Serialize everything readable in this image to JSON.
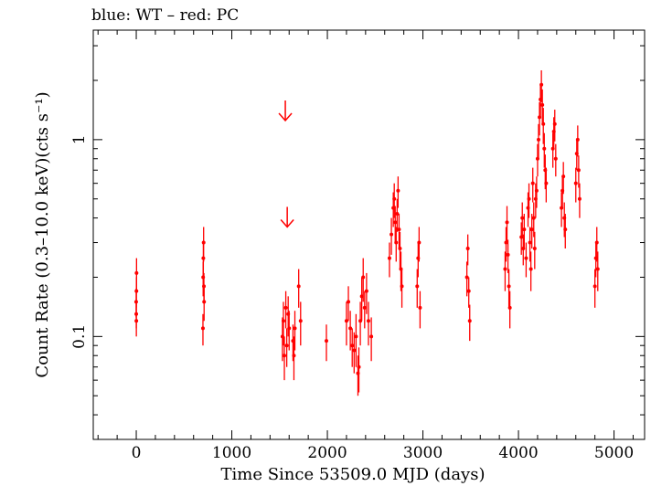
{
  "chart_data": {
    "type": "scatter",
    "title": "blue: WT – red: PC",
    "xlabel": "Time Since 53509.0 MJD (days)",
    "ylabel": "Count Rate (0.3–10.0 keV)(cts s⁻¹)",
    "xlim": [
      -450,
      5320
    ],
    "ylim": [
      0.03,
      3.6
    ],
    "yscale": "log",
    "grid": false,
    "x_ticks": [
      0,
      1000,
      2000,
      3000,
      4000,
      5000
    ],
    "x_tick_labels": [
      "0",
      "1000",
      "2000",
      "3000",
      "4000",
      "5000"
    ],
    "y_major_ticks": [
      0.1,
      1
    ],
    "y_tick_labels": [
      "0.1",
      "1"
    ],
    "colors": {
      "PC": "#ff0000",
      "WT": "#0000ff",
      "axes": "#000000"
    },
    "upper_limits": [
      {
        "x": 1560,
        "y": 1.25
      },
      {
        "x": 1580,
        "y": 0.36
      }
    ],
    "series": [
      {
        "name": "PC",
        "color": "#ff0000",
        "points": [
          [
            0,
            0.13,
            0.02
          ],
          [
            2,
            0.17,
            0.03
          ],
          [
            -1,
            0.15,
            0.025
          ],
          [
            3,
            0.21,
            0.04
          ],
          [
            1,
            0.12,
            0.02
          ],
          [
            700,
            0.2,
            0.04
          ],
          [
            702,
            0.25,
            0.05
          ],
          [
            705,
            0.3,
            0.06
          ],
          [
            710,
            0.15,
            0.03
          ],
          [
            698,
            0.11,
            0.02
          ],
          [
            708,
            0.18,
            0.03
          ],
          [
            1530,
            0.1,
            0.025
          ],
          [
            1540,
            0.12,
            0.03
          ],
          [
            1550,
            0.08,
            0.02
          ],
          [
            1565,
            0.14,
            0.03
          ],
          [
            1575,
            0.09,
            0.02
          ],
          [
            1590,
            0.13,
            0.03
          ],
          [
            1600,
            0.11,
            0.025
          ],
          [
            1640,
            0.095,
            0.02
          ],
          [
            1650,
            0.08,
            0.02
          ],
          [
            1660,
            0.11,
            0.025
          ],
          [
            1700,
            0.18,
            0.04
          ],
          [
            1720,
            0.12,
            0.03
          ],
          [
            1990,
            0.095,
            0.02
          ],
          [
            2200,
            0.12,
            0.03
          ],
          [
            2220,
            0.15,
            0.03
          ],
          [
            2240,
            0.11,
            0.025
          ],
          [
            2260,
            0.09,
            0.02
          ],
          [
            2280,
            0.085,
            0.02
          ],
          [
            2300,
            0.1,
            0.03
          ],
          [
            2320,
            0.065,
            0.015
          ],
          [
            2330,
            0.07,
            0.018
          ],
          [
            2345,
            0.12,
            0.03
          ],
          [
            2360,
            0.16,
            0.04
          ],
          [
            2375,
            0.2,
            0.05
          ],
          [
            2390,
            0.14,
            0.03
          ],
          [
            2410,
            0.17,
            0.04
          ],
          [
            2430,
            0.12,
            0.03
          ],
          [
            2460,
            0.1,
            0.025
          ],
          [
            2650,
            0.25,
            0.05
          ],
          [
            2670,
            0.33,
            0.07
          ],
          [
            2690,
            0.45,
            0.09
          ],
          [
            2700,
            0.5,
            0.1
          ],
          [
            2710,
            0.38,
            0.08
          ],
          [
            2720,
            0.3,
            0.06
          ],
          [
            2730,
            0.42,
            0.08
          ],
          [
            2740,
            0.55,
            0.1
          ],
          [
            2750,
            0.35,
            0.07
          ],
          [
            2760,
            0.28,
            0.06
          ],
          [
            2770,
            0.22,
            0.05
          ],
          [
            2780,
            0.18,
            0.04
          ],
          [
            2940,
            0.18,
            0.04
          ],
          [
            2950,
            0.25,
            0.05
          ],
          [
            2960,
            0.3,
            0.06
          ],
          [
            2970,
            0.14,
            0.03
          ],
          [
            3460,
            0.2,
            0.04
          ],
          [
            3470,
            0.28,
            0.05
          ],
          [
            3480,
            0.17,
            0.03
          ],
          [
            3490,
            0.12,
            0.025
          ],
          [
            3860,
            0.22,
            0.05
          ],
          [
            3870,
            0.3,
            0.06
          ],
          [
            3880,
            0.38,
            0.08
          ],
          [
            3890,
            0.26,
            0.05
          ],
          [
            3900,
            0.18,
            0.04
          ],
          [
            3910,
            0.14,
            0.03
          ],
          [
            4030,
            0.32,
            0.06
          ],
          [
            4040,
            0.4,
            0.08
          ],
          [
            4050,
            0.28,
            0.05
          ],
          [
            4060,
            0.35,
            0.07
          ],
          [
            4080,
            0.25,
            0.05
          ],
          [
            4100,
            0.45,
            0.09
          ],
          [
            4110,
            0.5,
            0.1
          ],
          [
            4120,
            0.3,
            0.06
          ],
          [
            4130,
            0.22,
            0.05
          ],
          [
            4140,
            0.35,
            0.07
          ],
          [
            4150,
            0.6,
            0.12
          ],
          [
            4160,
            0.4,
            0.08
          ],
          [
            4170,
            0.28,
            0.06
          ],
          [
            4180,
            0.5,
            0.1
          ],
          [
            4190,
            0.55,
            0.1
          ],
          [
            4200,
            0.8,
            0.15
          ],
          [
            4210,
            1.0,
            0.2
          ],
          [
            4220,
            1.3,
            0.25
          ],
          [
            4230,
            1.6,
            0.3
          ],
          [
            4240,
            1.9,
            0.35
          ],
          [
            4250,
            1.5,
            0.3
          ],
          [
            4260,
            1.2,
            0.25
          ],
          [
            4270,
            0.9,
            0.18
          ],
          [
            4280,
            0.7,
            0.14
          ],
          [
            4290,
            0.6,
            0.12
          ],
          [
            4360,
            0.9,
            0.18
          ],
          [
            4370,
            1.1,
            0.2
          ],
          [
            4380,
            1.2,
            0.22
          ],
          [
            4390,
            0.8,
            0.15
          ],
          [
            4450,
            0.45,
            0.09
          ],
          [
            4460,
            0.55,
            0.1
          ],
          [
            4470,
            0.65,
            0.12
          ],
          [
            4480,
            0.4,
            0.08
          ],
          [
            4490,
            0.35,
            0.07
          ],
          [
            4600,
            0.6,
            0.12
          ],
          [
            4610,
            0.85,
            0.15
          ],
          [
            4620,
            1.0,
            0.18
          ],
          [
            4630,
            0.7,
            0.13
          ],
          [
            4640,
            0.5,
            0.1
          ],
          [
            4800,
            0.18,
            0.04
          ],
          [
            4810,
            0.25,
            0.05
          ],
          [
            4820,
            0.3,
            0.06
          ],
          [
            4830,
            0.22,
            0.05
          ]
        ]
      }
    ]
  }
}
